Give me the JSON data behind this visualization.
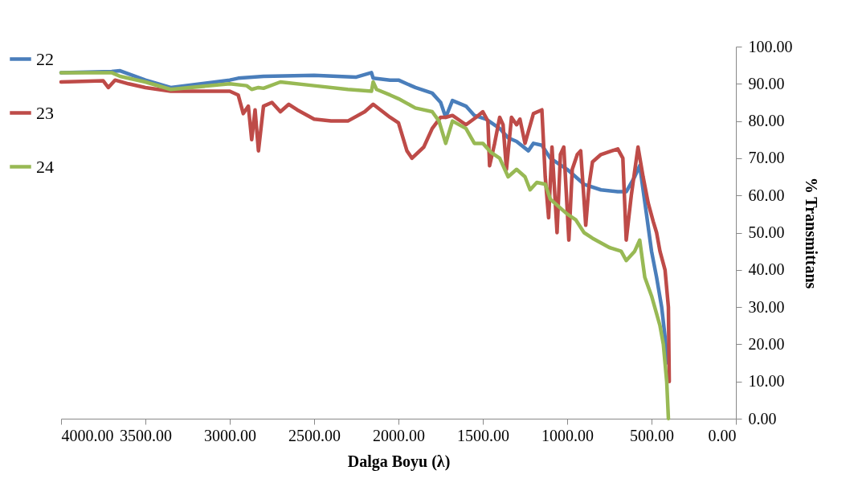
{
  "chart_data": {
    "type": "line",
    "xlabel": "Dalga Boyu (λ)",
    "ylabel": "% Transmittans",
    "xlim": [
      4000,
      0
    ],
    "ylim": [
      0,
      100
    ],
    "xticks": [
      {
        "value": 4000,
        "label": "4000.00"
      },
      {
        "value": 3500,
        "label": "3500.00"
      },
      {
        "value": 3000,
        "label": "3000.00"
      },
      {
        "value": 2500,
        "label": "2500.00"
      },
      {
        "value": 2000,
        "label": "2000.00"
      },
      {
        "value": 1500,
        "label": "1500.00"
      },
      {
        "value": 1000,
        "label": "1000.00"
      },
      {
        "value": 500,
        "label": "500.00"
      },
      {
        "value": 0,
        "label": "0.00"
      }
    ],
    "yticks": [
      {
        "value": 0,
        "label": "0.00"
      },
      {
        "value": 10,
        "label": "10.00"
      },
      {
        "value": 20,
        "label": "20.00"
      },
      {
        "value": 30,
        "label": "30.00"
      },
      {
        "value": 40,
        "label": "40.00"
      },
      {
        "value": 50,
        "label": "50.00"
      },
      {
        "value": 60,
        "label": "60.00"
      },
      {
        "value": 70,
        "label": "70.00"
      },
      {
        "value": 80,
        "label": "80.00"
      },
      {
        "value": 90,
        "label": "90.00"
      },
      {
        "value": 100,
        "label": "100.00"
      }
    ],
    "grid": false,
    "legend": "left",
    "line_style": "solid",
    "marker": "none",
    "series": [
      {
        "name": "22",
        "color": "#4a7ebb",
        "x": [
          4000,
          3700,
          3650,
          3500,
          3350,
          3000,
          2950,
          2800,
          2500,
          2250,
          2160,
          2150,
          2050,
          2000,
          1900,
          1800,
          1750,
          1720,
          1680,
          1600,
          1550,
          1480,
          1400,
          1350,
          1300,
          1230,
          1200,
          1150,
          1100,
          1000,
          900,
          800,
          700,
          650,
          600,
          570,
          530,
          500,
          470,
          440,
          420,
          405
        ],
        "values": [
          93,
          93.3,
          93.5,
          91,
          89,
          91,
          91.5,
          92,
          92.3,
          91.8,
          93,
          91.5,
          91,
          91,
          89,
          87.5,
          85,
          81,
          85.5,
          84,
          81.5,
          80.5,
          78,
          75.5,
          74.5,
          72,
          74,
          73.5,
          70,
          67,
          63,
          61.5,
          61,
          61,
          65,
          68,
          55,
          45,
          38,
          30,
          22,
          15
        ]
      },
      {
        "name": "23",
        "color": "#be4b48",
        "x": [
          4000,
          3750,
          3720,
          3680,
          3600,
          3500,
          3350,
          3000,
          2950,
          2920,
          2890,
          2870,
          2850,
          2830,
          2800,
          2750,
          2700,
          2650,
          2600,
          2500,
          2400,
          2300,
          2200,
          2150,
          2050,
          2000,
          1950,
          1920,
          1850,
          1800,
          1750,
          1720,
          1680,
          1600,
          1540,
          1500,
          1470,
          1460,
          1430,
          1400,
          1380,
          1360,
          1330,
          1300,
          1280,
          1250,
          1200,
          1150,
          1130,
          1110,
          1090,
          1060,
          1040,
          1020,
          990,
          970,
          940,
          920,
          890,
          870,
          850,
          800,
          700,
          670,
          650,
          620,
          580,
          550,
          520,
          490,
          470,
          450,
          420,
          400,
          395
        ],
        "values": [
          90.5,
          90.8,
          89,
          91,
          90,
          89,
          88,
          88,
          87,
          82,
          84,
          75,
          83,
          72,
          84,
          85,
          82.5,
          84.5,
          83,
          80.5,
          80,
          80,
          82.5,
          84.5,
          81,
          79.5,
          72,
          70,
          73,
          78,
          81,
          81,
          81.5,
          79,
          81,
          82.5,
          80,
          68,
          74,
          81,
          79,
          67,
          81,
          79,
          80.5,
          74,
          82,
          83,
          65,
          54,
          73,
          50,
          71,
          73,
          48,
          67,
          71,
          72,
          52,
          63,
          69,
          71,
          72.5,
          70,
          48,
          60,
          73,
          65,
          58,
          53,
          50,
          45,
          40,
          30,
          10
        ]
      },
      {
        "name": "24",
        "color": "#98b954",
        "x": [
          4000,
          3700,
          3650,
          3500,
          3350,
          3000,
          2900,
          2870,
          2830,
          2800,
          2700,
          2500,
          2300,
          2160,
          2150,
          2130,
          2050,
          2000,
          1900,
          1800,
          1760,
          1720,
          1680,
          1600,
          1550,
          1500,
          1450,
          1400,
          1350,
          1300,
          1250,
          1220,
          1180,
          1130,
          1100,
          1050,
          1000,
          950,
          900,
          850,
          750,
          680,
          650,
          600,
          570,
          540,
          500,
          450,
          430,
          410,
          400
        ],
        "values": [
          93,
          93,
          92,
          90.5,
          88.5,
          90,
          89.5,
          88.5,
          89,
          88.8,
          90.5,
          89.5,
          88.5,
          88,
          90.5,
          88.5,
          87,
          86,
          83.5,
          82.5,
          80,
          74,
          80,
          78,
          74,
          74,
          71.5,
          70,
          65,
          67,
          65,
          61.5,
          63.5,
          63,
          59,
          57,
          55,
          53.5,
          50,
          48.5,
          46,
          45,
          42.5,
          45,
          48,
          38,
          33,
          25,
          20,
          10,
          0
        ]
      }
    ]
  }
}
